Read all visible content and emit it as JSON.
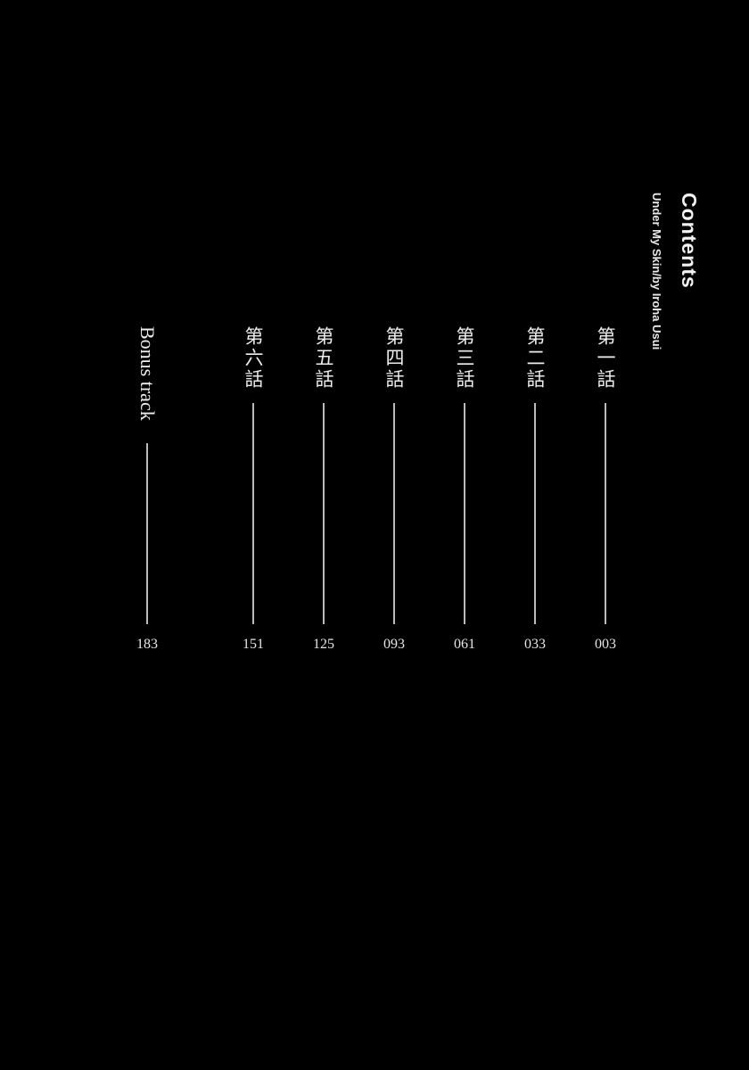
{
  "header": {
    "title": "Contents",
    "subtitle": "Under My Skin/by Iroha Usui"
  },
  "entries": [
    {
      "label": "第一話",
      "page": "003"
    },
    {
      "label": "第二話",
      "page": "033"
    },
    {
      "label": "第三話",
      "page": "061"
    },
    {
      "label": "第四話",
      "page": "093"
    },
    {
      "label": "第五話",
      "page": "125"
    },
    {
      "label": "第六話",
      "page": "151"
    },
    {
      "label": "Bonus track",
      "page": "183"
    }
  ],
  "colors": {
    "background": "#000000",
    "text": "#eeeeee"
  }
}
